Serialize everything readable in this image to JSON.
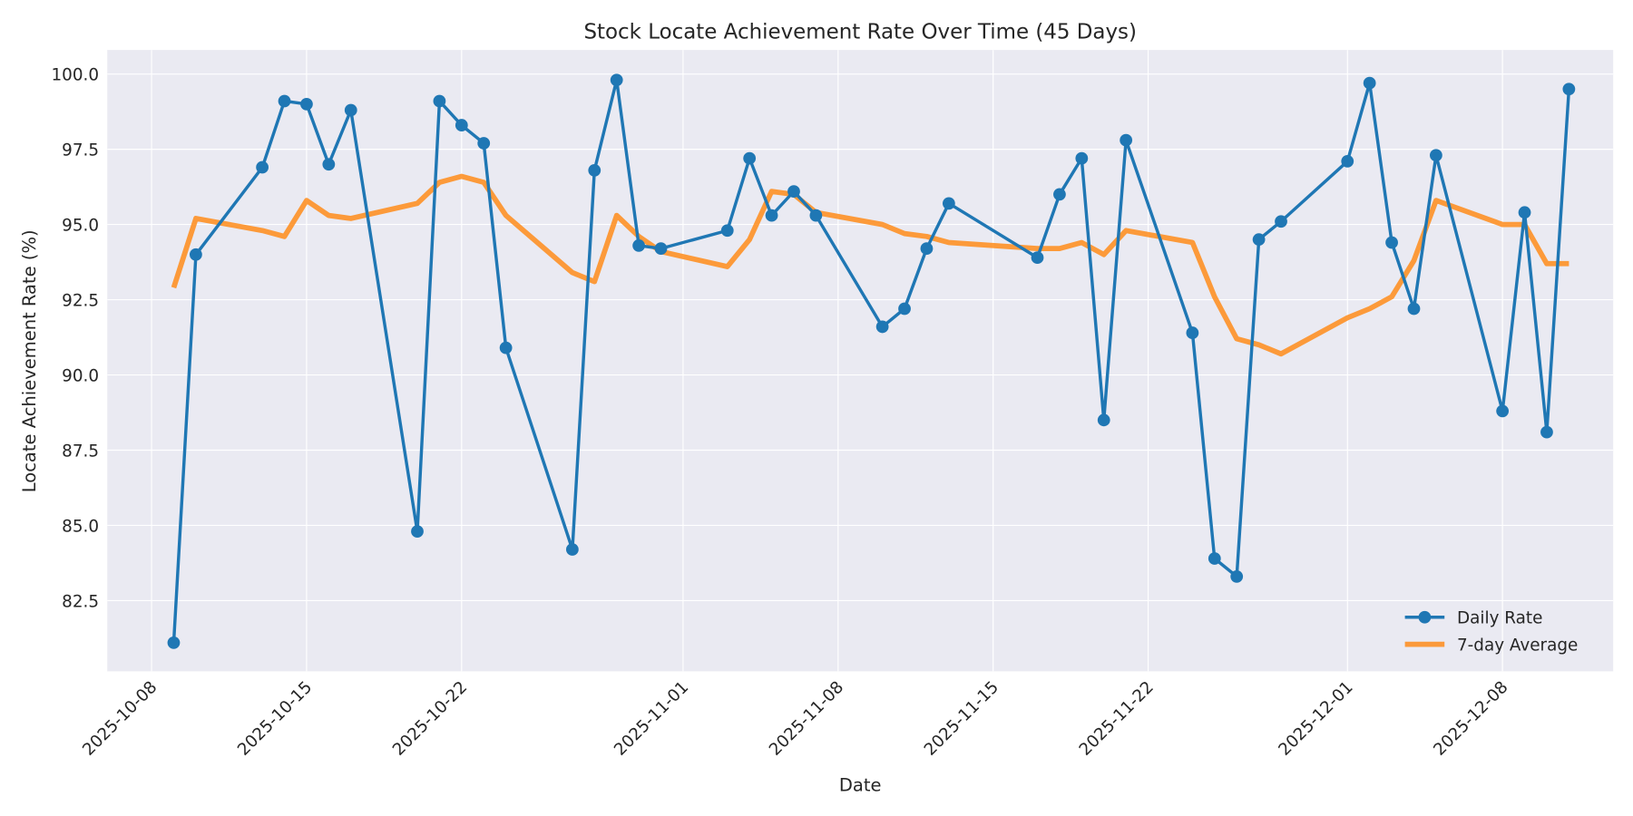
{
  "chart_data": {
    "type": "line",
    "title": "Stock Locate Achievement Rate Over Time (45 Days)",
    "xlabel": "Date",
    "ylabel": "Locate Achievement Rate (%)",
    "ylim": [
      80.15,
      100.8
    ],
    "xlim": [
      "2025-10-06",
      "2025-12-13"
    ],
    "grid": true,
    "legend_position": "bottom-right",
    "x_ticks": [
      "2025-10-08",
      "2025-10-15",
      "2025-10-22",
      "2025-11-01",
      "2025-11-08",
      "2025-11-15",
      "2025-11-22",
      "2025-12-01",
      "2025-12-08"
    ],
    "y_ticks": [
      "82.5",
      "85.0",
      "87.5",
      "90.0",
      "92.5",
      "95.0",
      "97.5",
      "100.0"
    ],
    "x": [
      "2025-10-09",
      "2025-10-10",
      "2025-10-13",
      "2025-10-14",
      "2025-10-15",
      "2025-10-16",
      "2025-10-17",
      "2025-10-20",
      "2025-10-21",
      "2025-10-22",
      "2025-10-23",
      "2025-10-24",
      "2025-10-27",
      "2025-10-28",
      "2025-10-29",
      "2025-10-30",
      "2025-10-31",
      "2025-11-03",
      "2025-11-04",
      "2025-11-05",
      "2025-11-06",
      "2025-11-07",
      "2025-11-10",
      "2025-11-11",
      "2025-11-12",
      "2025-11-13",
      "2025-11-17",
      "2025-11-18",
      "2025-11-19",
      "2025-11-20",
      "2025-11-21",
      "2025-11-24",
      "2025-11-25",
      "2025-11-26",
      "2025-11-27",
      "2025-11-28",
      "2025-12-01",
      "2025-12-02",
      "2025-12-03",
      "2025-12-04",
      "2025-12-05",
      "2025-12-08",
      "2025-12-09",
      "2025-12-10",
      "2025-12-11"
    ],
    "series": [
      {
        "name": "Daily Rate",
        "color": "#1f77b4",
        "marker": "circle",
        "values": [
          81.1,
          94.0,
          96.9,
          99.1,
          99.0,
          97.0,
          98.8,
          84.8,
          99.1,
          98.3,
          97.7,
          90.9,
          84.2,
          96.8,
          99.8,
          94.3,
          94.2,
          94.8,
          97.2,
          95.3,
          96.1,
          95.3,
          91.6,
          92.2,
          94.2,
          95.7,
          93.9,
          96.0,
          97.2,
          88.5,
          97.8,
          91.4,
          83.9,
          83.3,
          94.5,
          95.1,
          97.1,
          99.7,
          94.4,
          92.2,
          97.3,
          88.8,
          95.4,
          88.1,
          99.5
        ]
      },
      {
        "name": "7-day Average",
        "color": "#ff7f0e",
        "marker": "none",
        "values": [
          92.9,
          95.2,
          94.8,
          94.6,
          95.8,
          95.3,
          95.2,
          95.7,
          96.4,
          96.6,
          96.4,
          95.3,
          93.4,
          93.1,
          95.3,
          94.6,
          94.1,
          93.6,
          94.5,
          96.1,
          96.0,
          95.4,
          95.0,
          94.7,
          94.6,
          94.4,
          94.2,
          94.2,
          94.4,
          94.0,
          94.8,
          94.4,
          92.6,
          91.2,
          91.0,
          90.7,
          91.9,
          92.2,
          92.6,
          93.8,
          95.8,
          95.0,
          95.0,
          93.7,
          93.7
        ]
      }
    ]
  }
}
